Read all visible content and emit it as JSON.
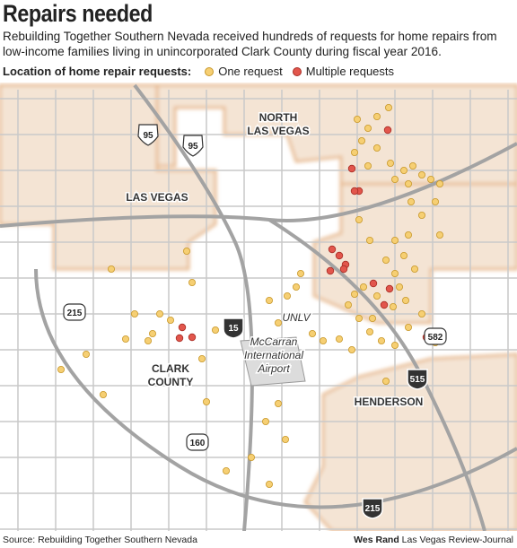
{
  "header": {
    "title": "Repairs needed",
    "description": "Rebuilding Together Southern Nevada received hundreds of requests for home repairs from low-income families living in unincorporated Clark County during fiscal year 2016."
  },
  "legend": {
    "label": "Location of home repair requests:",
    "items": [
      "One request",
      "Multiple requests"
    ]
  },
  "map": {
    "places": [
      [
        "NORTH",
        "LAS VEGAS"
      ],
      [
        "LAS VEGAS"
      ],
      [
        "CLARK",
        "COUNTY"
      ],
      [
        "UNLV"
      ],
      [
        "McCarran",
        "International",
        "Airport"
      ],
      [
        "HENDERSON"
      ]
    ],
    "highways": [
      "95",
      "95",
      "15",
      "215",
      "160",
      "515",
      "582",
      "215"
    ]
  },
  "footer": {
    "source": "Source: Rebuilding Together Southern Nevada",
    "credit_name": "Wes Rand",
    "credit_org": "Las Vegas Review-Journal"
  }
}
